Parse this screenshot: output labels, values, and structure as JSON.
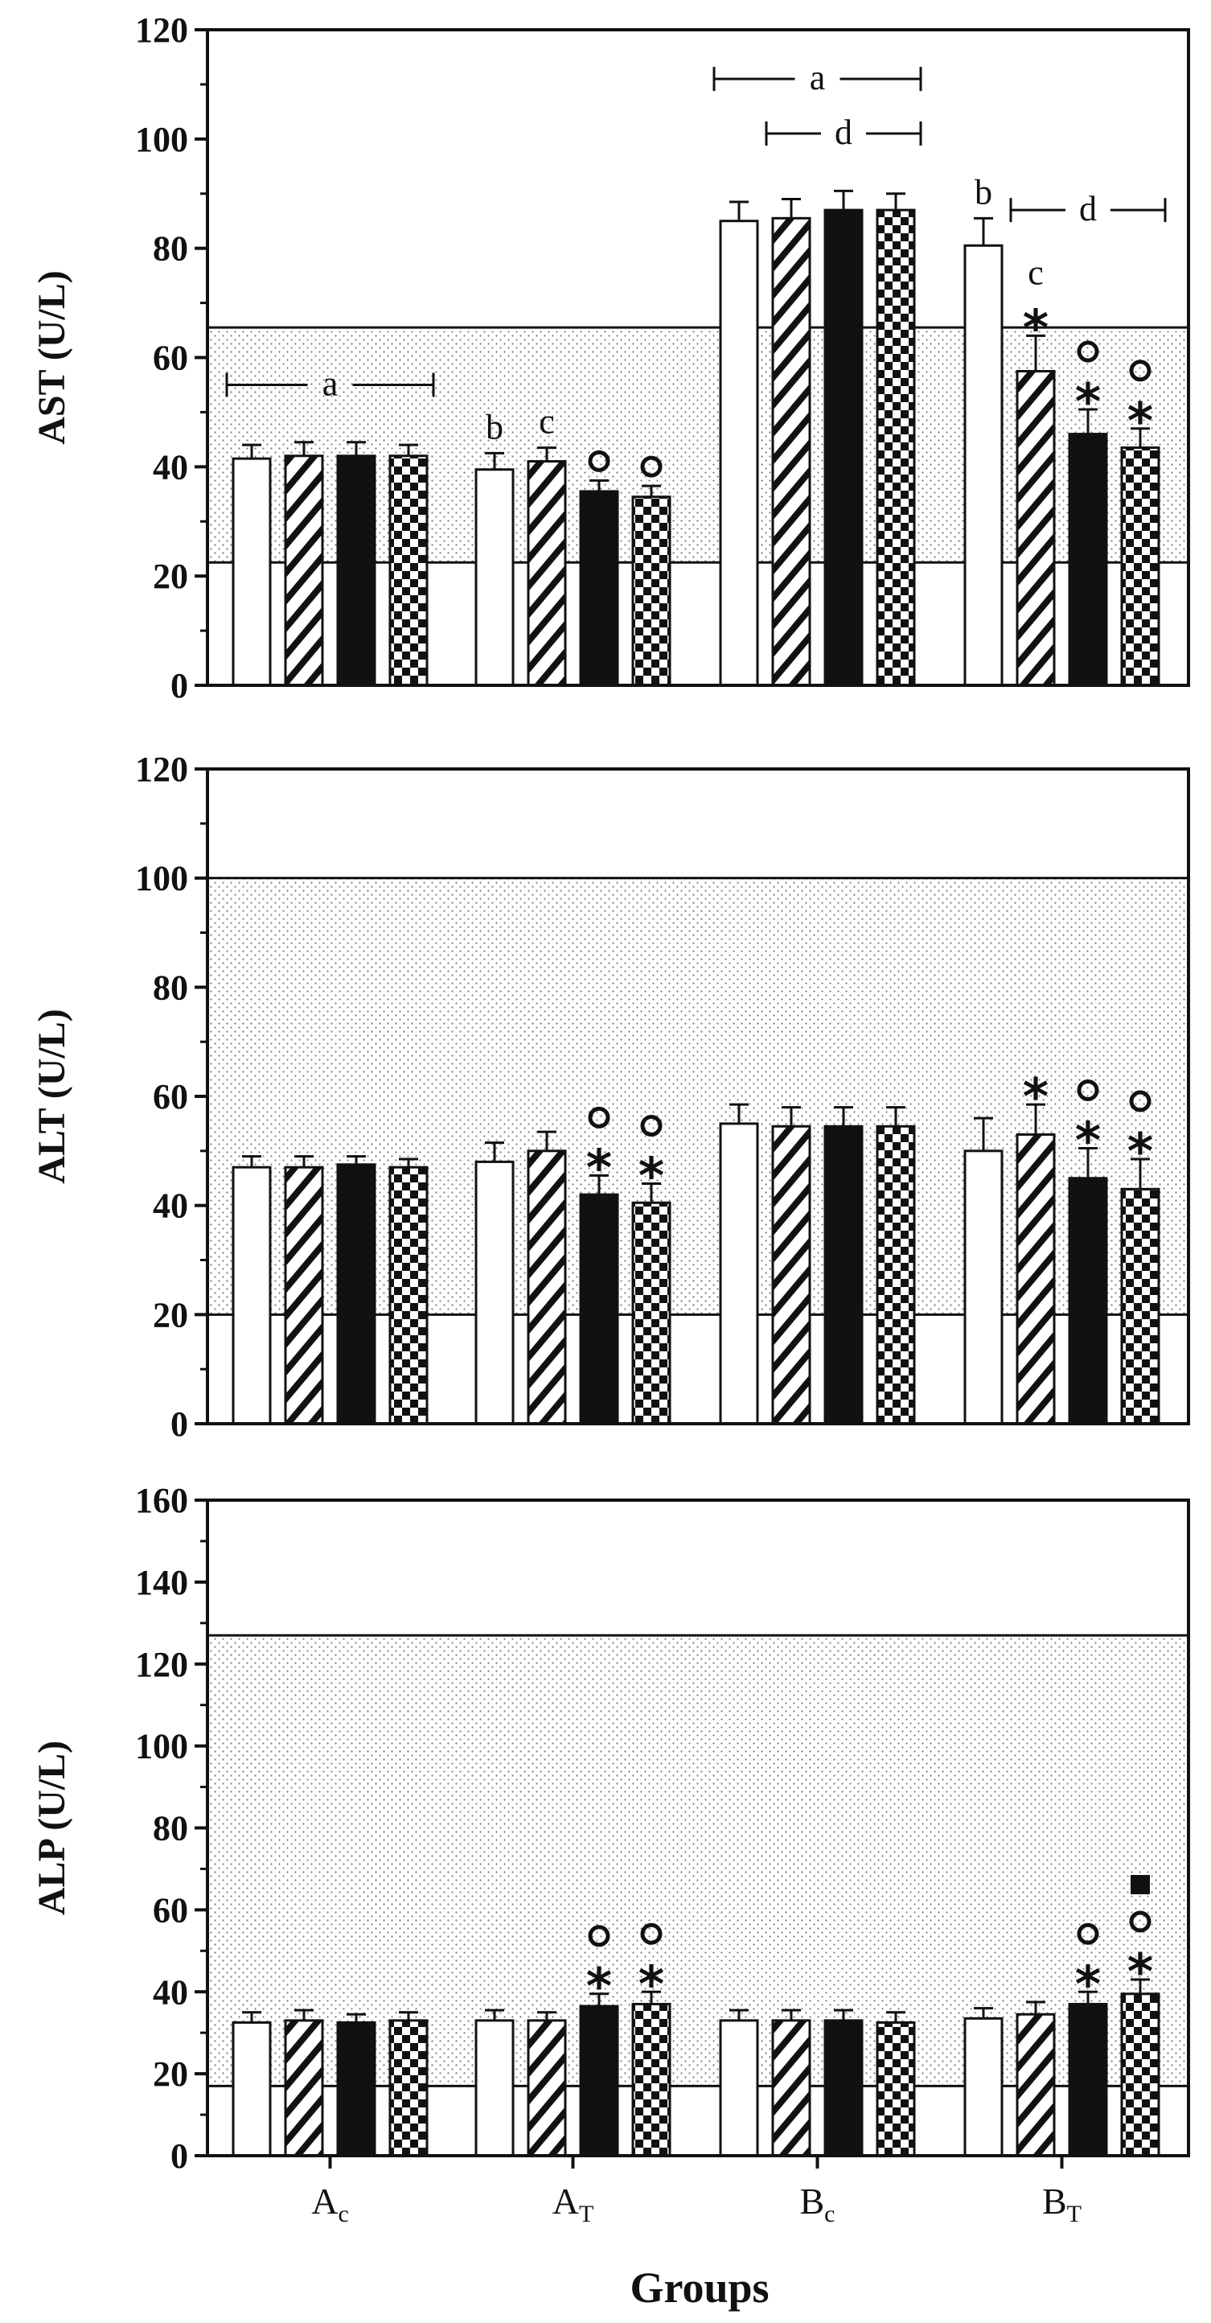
{
  "colors": {
    "ink": "#111111",
    "bar_white": "#ffffff",
    "band_dots": "#7a7a7a"
  },
  "x_title": "Groups",
  "chart_data": [
    {
      "type": "bar",
      "ylabel": "AST (U/L)",
      "ylim": [
        0,
        120
      ],
      "yticks": [
        0,
        20,
        40,
        60,
        80,
        100,
        120
      ],
      "reference_range": [
        22.5,
        65.5
      ],
      "categories": [
        {
          "main": "A",
          "sub": "c"
        },
        {
          "main": "A",
          "sub": "T"
        },
        {
          "main": "B",
          "sub": "c"
        },
        {
          "main": "B",
          "sub": "T"
        }
      ],
      "series": [
        {
          "pattern": "white",
          "values": [
            41.5,
            39.5,
            85,
            80.5
          ],
          "errors": [
            2.5,
            3,
            3.5,
            5
          ]
        },
        {
          "pattern": "hatched",
          "values": [
            42,
            41,
            85.5,
            57.5
          ],
          "errors": [
            2.5,
            2.5,
            3.5,
            6.5
          ]
        },
        {
          "pattern": "black",
          "values": [
            42,
            35.5,
            87,
            46
          ],
          "errors": [
            2.5,
            2,
            3.5,
            4.5
          ]
        },
        {
          "pattern": "checkered",
          "values": [
            42,
            34.5,
            87,
            43.5
          ],
          "errors": [
            2,
            2,
            3,
            3.5
          ]
        }
      ],
      "markers": [
        {
          "cat": 1,
          "bar": 2,
          "symbols": [
            "o"
          ]
        },
        {
          "cat": 1,
          "bar": 3,
          "symbols": [
            "o"
          ]
        },
        {
          "cat": 3,
          "bar": 1,
          "symbols": [
            "*"
          ]
        },
        {
          "cat": 3,
          "bar": 2,
          "symbols": [
            "*",
            "o"
          ]
        },
        {
          "cat": 3,
          "bar": 3,
          "symbols": [
            "*",
            "o"
          ]
        }
      ],
      "letters": [
        {
          "cat": 1,
          "bar": 0,
          "text": "b"
        },
        {
          "cat": 1,
          "bar": 1,
          "text": "c"
        },
        {
          "cat": 3,
          "bar": 0,
          "text": "b"
        },
        {
          "cat": 3,
          "bar": 1,
          "text": "c"
        }
      ],
      "brackets": [
        {
          "text": "a",
          "from": [
            0,
            0
          ],
          "to": [
            0,
            3
          ],
          "y": 55
        },
        {
          "text": "a",
          "from": [
            2,
            0
          ],
          "to": [
            2,
            3
          ],
          "y": 111
        },
        {
          "text": "d",
          "from": [
            2,
            1
          ],
          "to": [
            2,
            3
          ],
          "y": 101
        },
        {
          "text": "d",
          "from": [
            3,
            1
          ],
          "to": [
            3,
            3
          ],
          "y": 87
        }
      ]
    },
    {
      "type": "bar",
      "ylabel": "ALT (U/L)",
      "ylim": [
        0,
        120
      ],
      "yticks": [
        0,
        20,
        40,
        60,
        80,
        100,
        120
      ],
      "reference_range": [
        20,
        100
      ],
      "categories": [
        {
          "main": "A",
          "sub": "c"
        },
        {
          "main": "A",
          "sub": "T"
        },
        {
          "main": "B",
          "sub": "c"
        },
        {
          "main": "B",
          "sub": "T"
        }
      ],
      "series": [
        {
          "pattern": "white",
          "values": [
            47,
            48,
            55,
            50
          ],
          "errors": [
            2,
            3.5,
            3.5,
            6
          ]
        },
        {
          "pattern": "hatched",
          "values": [
            47,
            50,
            54.5,
            53
          ],
          "errors": [
            2,
            3.5,
            3.5,
            5.5
          ]
        },
        {
          "pattern": "black",
          "values": [
            47.5,
            42,
            54.5,
            45
          ],
          "errors": [
            1.5,
            3.5,
            3.5,
            5.5
          ]
        },
        {
          "pattern": "checkered",
          "values": [
            47,
            40.5,
            54.5,
            43
          ],
          "errors": [
            1.5,
            3.5,
            3.5,
            5.5
          ]
        }
      ],
      "markers": [
        {
          "cat": 1,
          "bar": 2,
          "symbols": [
            "*",
            "o"
          ]
        },
        {
          "cat": 1,
          "bar": 3,
          "symbols": [
            "*",
            "o"
          ]
        },
        {
          "cat": 3,
          "bar": 1,
          "symbols": [
            "*"
          ]
        },
        {
          "cat": 3,
          "bar": 2,
          "symbols": [
            "*",
            "o"
          ]
        },
        {
          "cat": 3,
          "bar": 3,
          "symbols": [
            "*",
            "o"
          ]
        }
      ],
      "letters": [],
      "brackets": []
    },
    {
      "type": "bar",
      "ylabel": "ALP (U/L)",
      "ylim": [
        0,
        160
      ],
      "yticks": [
        0,
        20,
        40,
        60,
        80,
        100,
        120,
        140,
        160
      ],
      "reference_range": [
        17,
        127
      ],
      "categories": [
        {
          "main": "A",
          "sub": "c"
        },
        {
          "main": "A",
          "sub": "T"
        },
        {
          "main": "B",
          "sub": "c"
        },
        {
          "main": "B",
          "sub": "T"
        }
      ],
      "series": [
        {
          "pattern": "white",
          "values": [
            32.5,
            33,
            33,
            33.5
          ],
          "errors": [
            2.5,
            2.5,
            2.5,
            2.5
          ]
        },
        {
          "pattern": "hatched",
          "values": [
            33,
            33,
            33,
            34.5
          ],
          "errors": [
            2.5,
            2,
            2.5,
            3
          ]
        },
        {
          "pattern": "black",
          "values": [
            32.5,
            36.5,
            33,
            37
          ],
          "errors": [
            2,
            3,
            2.5,
            3
          ]
        },
        {
          "pattern": "checkered",
          "values": [
            33,
            37,
            32.5,
            39.5
          ],
          "errors": [
            2,
            3,
            2.5,
            3.5
          ]
        }
      ],
      "markers": [
        {
          "cat": 1,
          "bar": 2,
          "symbols": [
            "*",
            "o"
          ]
        },
        {
          "cat": 1,
          "bar": 3,
          "symbols": [
            "*",
            "o"
          ]
        },
        {
          "cat": 3,
          "bar": 2,
          "symbols": [
            "*",
            "o"
          ]
        },
        {
          "cat": 3,
          "bar": 3,
          "symbols": [
            "*",
            "o",
            "sq"
          ]
        }
      ],
      "letters": [],
      "brackets": []
    }
  ]
}
